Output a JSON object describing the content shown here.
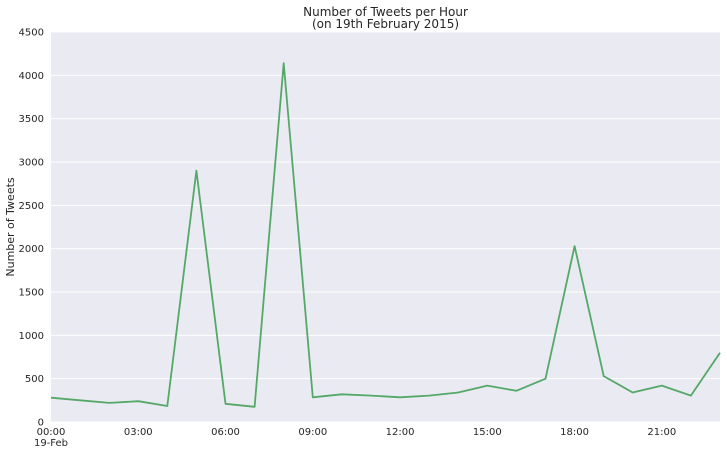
{
  "chart_data": {
    "type": "line",
    "title": "Number of Tweets per Hour",
    "subtitle": "(on 19th February 2015)",
    "xlabel": "",
    "ylabel": "Number of Tweets",
    "x": [
      "00:00",
      "01:00",
      "02:00",
      "03:00",
      "04:00",
      "05:00",
      "06:00",
      "07:00",
      "08:00",
      "09:00",
      "10:00",
      "11:00",
      "12:00",
      "13:00",
      "14:00",
      "15:00",
      "16:00",
      "17:00",
      "18:00",
      "19:00",
      "20:00",
      "21:00",
      "22:00",
      "23:00"
    ],
    "values": [
      280,
      250,
      220,
      240,
      185,
      2900,
      210,
      175,
      4140,
      285,
      320,
      305,
      285,
      305,
      340,
      420,
      360,
      500,
      2030,
      530,
      340,
      420,
      305,
      800
    ],
    "ylim": [
      0,
      4500
    ],
    "yticks": [
      "0",
      "500",
      "1000",
      "1500",
      "2000",
      "2500",
      "3000",
      "3500",
      "4000",
      "4500"
    ],
    "xticks": [
      {
        "hour": 0,
        "label": "00:00",
        "sublabel": "19-Feb"
      },
      {
        "hour": 3,
        "label": "03:00",
        "sublabel": ""
      },
      {
        "hour": 6,
        "label": "06:00",
        "sublabel": ""
      },
      {
        "hour": 9,
        "label": "09:00",
        "sublabel": ""
      },
      {
        "hour": 12,
        "label": "12:00",
        "sublabel": ""
      },
      {
        "hour": 15,
        "label": "15:00",
        "sublabel": ""
      },
      {
        "hour": 18,
        "label": "18:00",
        "sublabel": ""
      },
      {
        "hour": 21,
        "label": "21:00",
        "sublabel": ""
      }
    ],
    "grid": true,
    "background": "#eaeaf2",
    "grid_color": "#ffffff",
    "line_color": "#55a868"
  }
}
